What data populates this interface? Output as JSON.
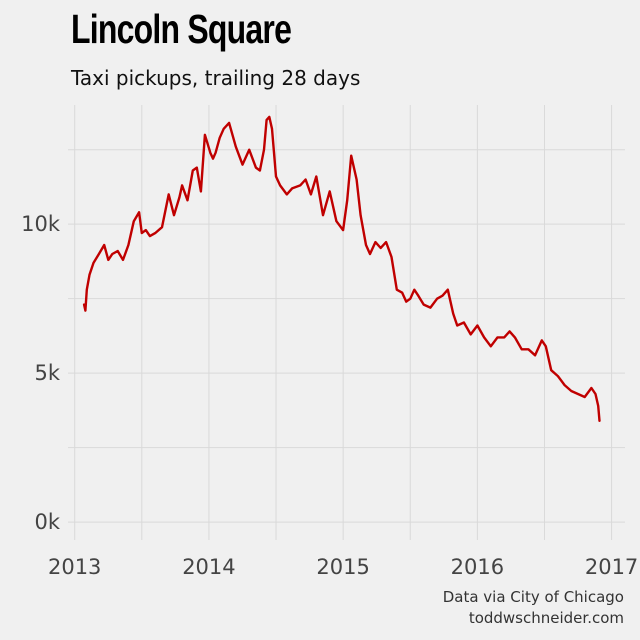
{
  "title": "Lincoln Square",
  "subtitle": "Taxi pickups, trailing 28 days",
  "caption": {
    "line1": "Data via City of Chicago",
    "line2": "toddwschneider.com"
  },
  "colors": {
    "background": "#f0f0f0",
    "grid": "#d9d9d9",
    "line": "#c00000"
  },
  "chart_data": {
    "type": "line",
    "title": "Lincoln Square",
    "subtitle": "Taxi pickups, trailing 28 days",
    "xlabel": "",
    "ylabel": "",
    "grid": true,
    "legend": "none",
    "xlim": [
      2012.95,
      2017.1
    ],
    "ylim": [
      -600,
      14000
    ],
    "x_ticks": [
      2013,
      2014,
      2015,
      2016,
      2017
    ],
    "x_tick_labels": [
      "2013",
      "2014",
      "2015",
      "2016",
      "2017"
    ],
    "y_ticks": [
      0,
      5000,
      10000
    ],
    "y_tick_labels": [
      "0k",
      "5k",
      "10k"
    ],
    "series": [
      {
        "x": [
          2013.07,
          2013.08,
          2013.09,
          2013.11,
          2013.14,
          2013.18,
          2013.22,
          2013.25,
          2013.28,
          2013.32,
          2013.36,
          2013.4,
          2013.44,
          2013.48,
          2013.5,
          2013.53,
          2013.56,
          2013.6,
          2013.65,
          2013.7,
          2013.74,
          2013.78,
          2013.8,
          2013.84,
          2013.88,
          2013.91,
          2013.94,
          2013.97,
          2013.99,
          2014.01,
          2014.03,
          2014.05,
          2014.08,
          2014.11,
          2014.15,
          2014.2,
          2014.25,
          2014.3,
          2014.35,
          2014.38,
          2014.41,
          2014.43,
          2014.45,
          2014.47,
          2014.5,
          2014.53,
          2014.58,
          2014.62,
          2014.68,
          2014.72,
          2014.76,
          2014.8,
          2014.85,
          2014.9,
          2014.95,
          2015.0,
          2015.03,
          2015.06,
          2015.1,
          2015.13,
          2015.15,
          2015.17,
          2015.2,
          2015.24,
          2015.28,
          2015.32,
          2015.36,
          2015.4,
          2015.44,
          2015.47,
          2015.5,
          2015.53,
          2015.56,
          2015.6,
          2015.65,
          2015.7,
          2015.74,
          2015.78,
          2015.82,
          2015.85,
          2015.9,
          2015.95,
          2016.0,
          2016.05,
          2016.1,
          2016.15,
          2016.2,
          2016.24,
          2016.28,
          2016.33,
          2016.38,
          2016.43,
          2016.48,
          2016.51,
          2016.55,
          2016.6,
          2016.65,
          2016.7,
          2016.75,
          2016.8,
          2016.85,
          2016.88,
          2016.9,
          2016.91
        ],
        "values": [
          7300,
          7100,
          7800,
          8300,
          8700,
          9000,
          9300,
          8800,
          9000,
          9100,
          8800,
          9300,
          10100,
          10400,
          9700,
          9800,
          9600,
          9700,
          9900,
          11000,
          10300,
          10900,
          11300,
          10800,
          11800,
          11900,
          11100,
          13000,
          12700,
          12400,
          12200,
          12400,
          12900,
          13200,
          13400,
          12600,
          12000,
          12500,
          11900,
          11800,
          12500,
          13500,
          13600,
          13200,
          11600,
          11300,
          11000,
          11200,
          11300,
          11500,
          11000,
          11600,
          10300,
          11100,
          10100,
          9800,
          10800,
          12300,
          11500,
          10300,
          9800,
          9300,
          9000,
          9400,
          9200,
          9400,
          8900,
          7800,
          7700,
          7400,
          7500,
          7800,
          7600,
          7300,
          7200,
          7500,
          7600,
          7800,
          7000,
          6600,
          6700,
          6300,
          6600,
          6200,
          5900,
          6200,
          6200,
          6400,
          6200,
          5800,
          5800,
          5600,
          6100,
          5900,
          5100,
          4900,
          4600,
          4400,
          4300,
          4200,
          4500,
          4300,
          3900,
          3400
        ]
      }
    ]
  }
}
